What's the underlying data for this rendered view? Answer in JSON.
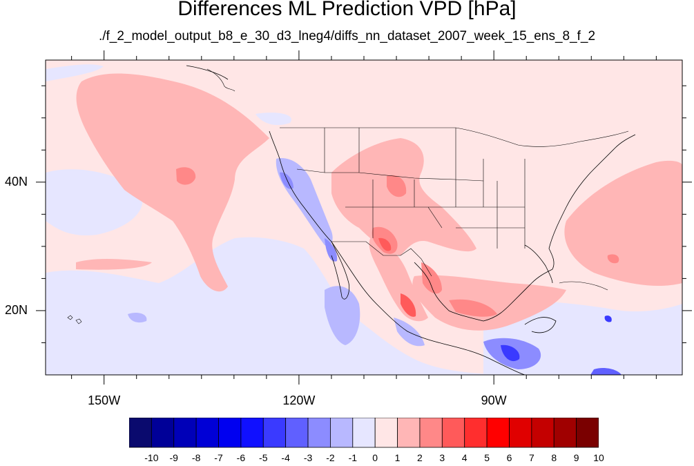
{
  "title": "Differences ML Prediction VPD [hPa]",
  "subtitle": "./f_2_model_output_b8_e_30_d3_lneg4/diffs_nn_dataset_2007_week_15_ens_8_f_2",
  "axes": {
    "x_ticks": [
      {
        "value": -150,
        "label": "150W"
      },
      {
        "value": -120,
        "label": "120W"
      },
      {
        "value": -90,
        "label": "90W"
      }
    ],
    "y_ticks": [
      {
        "value": 40,
        "label": "40N"
      },
      {
        "value": 20,
        "label": "20N"
      }
    ],
    "lon_range": [
      -159,
      -61
    ],
    "lat_range": [
      10,
      59
    ]
  },
  "colorbar": {
    "labels": [
      "-10",
      "-9",
      "-8",
      "-7",
      "-6",
      "-5",
      "-4",
      "-3",
      "-2",
      "-1",
      "0",
      "1",
      "2",
      "3",
      "4",
      "5",
      "6",
      "7",
      "8",
      "9",
      "10"
    ],
    "colors": [
      "#0a0a6e",
      "#000098",
      "#0000b8",
      "#0000d6",
      "#0000f0",
      "#1010ff",
      "#3a3aff",
      "#6060ff",
      "#8c8cff",
      "#b8b8ff",
      "#e6e6ff",
      "#ffe6e6",
      "#ffb6b6",
      "#ff8888",
      "#ff5a5a",
      "#ff2e2e",
      "#ff0000",
      "#e00000",
      "#c40000",
      "#a00000",
      "#7a0000"
    ]
  }
}
